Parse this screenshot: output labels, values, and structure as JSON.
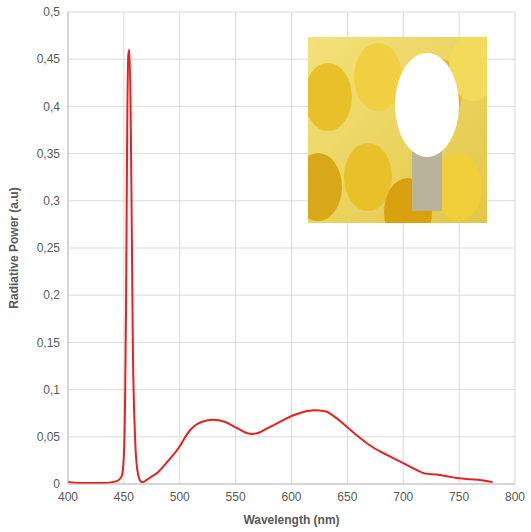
{
  "chart_data": {
    "type": "line",
    "x_label": "Wavelength (nm)",
    "y_label": "Radiative Power (a.u)",
    "color": "#e8201e",
    "grid": true,
    "xlim": [
      400,
      800
    ],
    "xticks": [
      400,
      450,
      500,
      550,
      600,
      650,
      700,
      750,
      800
    ],
    "ylim": [
      0,
      0.5
    ],
    "yticks": [
      0,
      {
        "value": 0.05,
        "label": "0,05"
      },
      {
        "value": 0.1,
        "label": "0,1"
      },
      {
        "value": 0.15,
        "label": "0,15"
      },
      {
        "value": 0.2,
        "label": "0,2"
      },
      {
        "value": 0.25,
        "label": "0,25"
      },
      {
        "value": 0.3,
        "label": "0,3"
      },
      {
        "value": 0.35,
        "label": "0,35"
      },
      {
        "value": 0.4,
        "label": "0,4"
      },
      {
        "value": 0.45,
        "label": "0,45"
      },
      {
        "value": 0.5,
        "label": "0,5"
      }
    ],
    "x": [
      400,
      410,
      420,
      430,
      440,
      445,
      448,
      450,
      452,
      453,
      454,
      455,
      456,
      457,
      458,
      460,
      462,
      465,
      467,
      470,
      475,
      480,
      490,
      500,
      505,
      510,
      515,
      520,
      530,
      540,
      550,
      560,
      565,
      570,
      580,
      590,
      600,
      610,
      620,
      630,
      640,
      650,
      660,
      670,
      680,
      690,
      700,
      710,
      720,
      730,
      740,
      750,
      760,
      770,
      780
    ],
    "values": [
      0.002,
      0.001,
      0.001,
      0.001,
      0.002,
      0.004,
      0.008,
      0.03,
      0.2,
      0.38,
      0.455,
      0.46,
      0.4,
      0.28,
      0.15,
      0.05,
      0.015,
      0.003,
      0.002,
      0.004,
      0.008,
      0.012,
      0.025,
      0.04,
      0.05,
      0.058,
      0.063,
      0.066,
      0.068,
      0.066,
      0.06,
      0.054,
      0.053,
      0.054,
      0.06,
      0.066,
      0.072,
      0.076,
      0.078,
      0.077,
      0.07,
      0.06,
      0.05,
      0.041,
      0.034,
      0.028,
      0.022,
      0.016,
      0.011,
      0.01,
      0.008,
      0.006,
      0.005,
      0.004,
      0.002
    ]
  }
}
